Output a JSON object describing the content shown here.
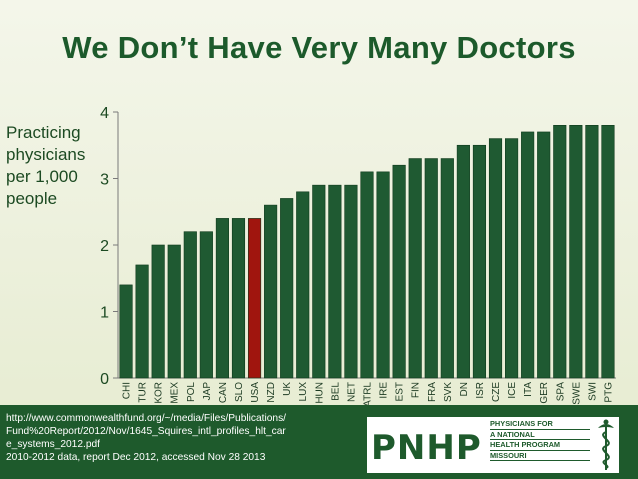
{
  "slide": {
    "title": "We Don’t Have Very Many Doctors",
    "ylabel_lines": [
      "Practicing",
      "physicians",
      "per 1,000",
      "people"
    ]
  },
  "footer": {
    "source_lines": [
      "http://www.commonwealthfund.org/~/media/Files/Publications/Fund%20Report/2012/Nov/1645_Squires_intl_profiles_hlt_care_systems_2012.pdf",
      "2010-2012 data, report Dec 2012, accessed Nov 28 2013"
    ],
    "logo_text": "PNHP",
    "org_lines": [
      "PHYSICIANS FOR",
      "A NATIONAL",
      "HEALTH PROGRAM",
      "MISSOURI"
    ]
  },
  "chart_data": {
    "type": "bar",
    "categories": [
      "CHI",
      "TUR",
      "KOR",
      "MEX",
      "POL",
      "JAP",
      "CAN",
      "SLO",
      "USA",
      "NZD",
      "UK",
      "LUX",
      "HUN",
      "BEL",
      "NET",
      "ATRL",
      "IRE",
      "EST",
      "FIN",
      "FRA",
      "SVK",
      "DN",
      "ISR",
      "CZE",
      "ICE",
      "ITA",
      "GER",
      "SPA",
      "SWE",
      "SWI",
      "PTG"
    ],
    "values": [
      1.4,
      1.7,
      2.0,
      2.0,
      2.2,
      2.2,
      2.4,
      2.4,
      2.4,
      2.6,
      2.7,
      2.8,
      2.9,
      2.9,
      2.9,
      3.1,
      3.1,
      3.2,
      3.3,
      3.3,
      3.3,
      3.5,
      3.5,
      3.6,
      3.6,
      3.7,
      3.7,
      3.8,
      3.8,
      3.8,
      3.8
    ],
    "highlight": "USA",
    "colors": {
      "bar": "#1f5a32",
      "highlight": "#a0150e"
    },
    "ylim": [
      0,
      4
    ],
    "yticks": [
      0,
      1,
      2,
      3,
      4
    ],
    "grid": false
  }
}
